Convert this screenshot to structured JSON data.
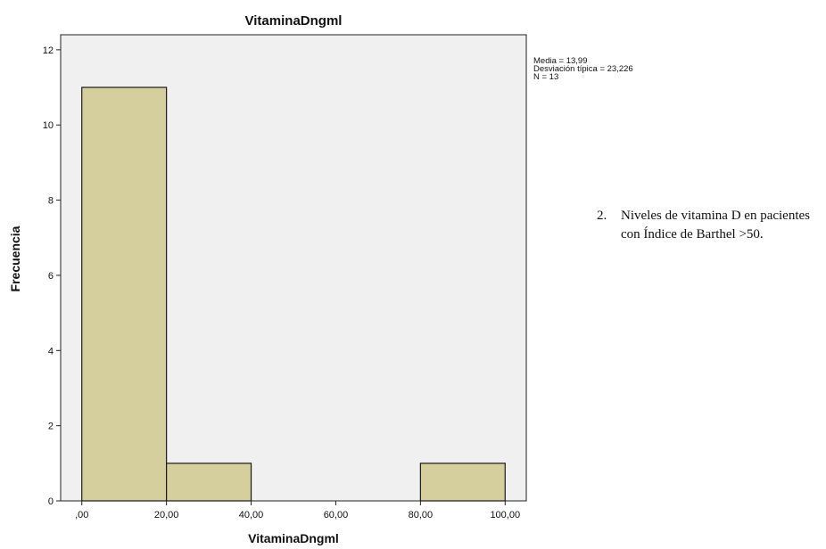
{
  "chart_data": {
    "type": "bar",
    "title": "VitaminaDngml",
    "xlabel": "VitaminaDngml",
    "ylabel": "Frecuencia",
    "bins": [
      {
        "from": 0,
        "to": 20,
        "value": 11
      },
      {
        "from": 20,
        "to": 40,
        "value": 1
      },
      {
        "from": 40,
        "to": 60,
        "value": 0
      },
      {
        "from": 60,
        "to": 80,
        "value": 0
      },
      {
        "from": 80,
        "to": 100,
        "value": 1
      }
    ],
    "xlim": [
      -5,
      105
    ],
    "ylim": [
      0,
      12.4
    ],
    "x_ticks": [
      0,
      20,
      40,
      60,
      80,
      100
    ],
    "x_tick_labels": [
      ",00",
      "20,00",
      "40,00",
      "60,00",
      "80,00",
      "100,00"
    ],
    "y_ticks": [
      0,
      2,
      4,
      6,
      8,
      10,
      12
    ],
    "y_tick_labels": [
      "0",
      "2",
      "4",
      "6",
      "8",
      "10",
      "12"
    ],
    "grid": false,
    "colors": {
      "plot_background": "#f0f0f0",
      "bar_fill": "#d4cf9c",
      "bar_stroke": "#1a1a1a"
    }
  },
  "stats_box": {
    "media": "Media = 13,99",
    "desviacion": "Desviación típica = 23,226",
    "n": "N = 13"
  },
  "caption": {
    "number": "2.",
    "text": "Niveles de vitamina D en pacientes con Índice de Barthel >50."
  }
}
